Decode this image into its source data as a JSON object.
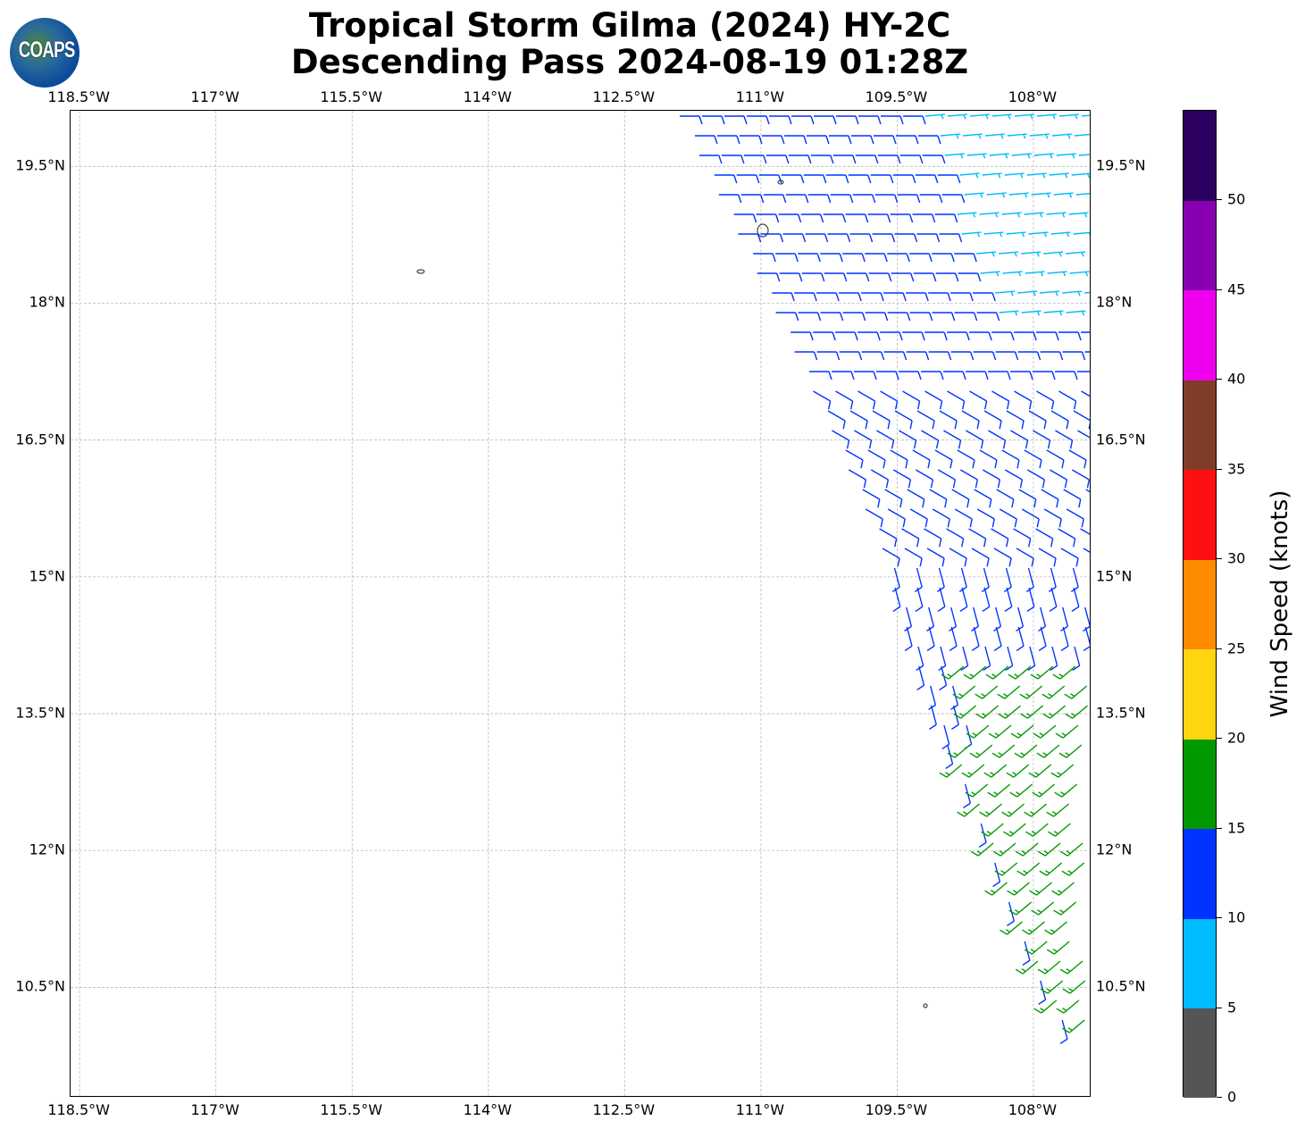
{
  "title_line1": "Tropical Storm Gilma (2024) HY-2C",
  "title_line2": "Descending Pass 2024-08-19 01:28Z",
  "logo_text": "COAPS",
  "chart_data": {
    "type": "map-wind-barbs",
    "title": "Tropical Storm Gilma (2024) HY-2C Descending Pass 2024-08-19 01:28Z",
    "extent_lon": [
      -118.6,
      -107.36
    ],
    "extent_lat": [
      9.29,
      20.11
    ],
    "lon_ticks": [
      {
        "value": -118.5,
        "label": "118.5°W"
      },
      {
        "value": -117,
        "label": "117°W"
      },
      {
        "value": -115.5,
        "label": "115.5°W"
      },
      {
        "value": -114,
        "label": "114°W"
      },
      {
        "value": -112.5,
        "label": "112.5°W"
      },
      {
        "value": -111,
        "label": "111°W"
      },
      {
        "value": -109.5,
        "label": "109.5°W"
      },
      {
        "value": -108,
        "label": "108°W"
      }
    ],
    "lat_ticks": [
      {
        "value": 19.5,
        "label": "19.5°N"
      },
      {
        "value": 18,
        "label": "18°N"
      },
      {
        "value": 16.5,
        "label": "16.5°N"
      },
      {
        "value": 15,
        "label": "15°N"
      },
      {
        "value": 13.5,
        "label": "13.5°N"
      },
      {
        "value": 12,
        "label": "12°N"
      },
      {
        "value": 10.5,
        "label": "10.5°N"
      }
    ],
    "grid": true,
    "colorbar": {
      "label": "Wind Speed (knots)",
      "range": [
        0,
        55
      ],
      "tick_labels": [
        "0",
        "5",
        "10",
        "15",
        "20",
        "25",
        "30",
        "35",
        "40",
        "45",
        "50"
      ],
      "bins": [
        {
          "min": 0,
          "max": 5,
          "color": "#555555"
        },
        {
          "min": 5,
          "max": 10,
          "color": "#00bbff"
        },
        {
          "min": 10,
          "max": 15,
          "color": "#0033ff"
        },
        {
          "min": 15,
          "max": 20,
          "color": "#009900"
        },
        {
          "min": 20,
          "max": 25,
          "color": "#ffd511"
        },
        {
          "min": 25,
          "max": 30,
          "color": "#ff8c00"
        },
        {
          "min": 30,
          "max": 35,
          "color": "#ff1010"
        },
        {
          "min": 35,
          "max": 40,
          "color": "#803d28"
        },
        {
          "min": 40,
          "max": 45,
          "color": "#ee00ee"
        },
        {
          "min": 45,
          "max": 50,
          "color": "#8800b0"
        },
        {
          "min": 50,
          "max": 55,
          "color": "#2c0060"
        }
      ]
    }
  }
}
